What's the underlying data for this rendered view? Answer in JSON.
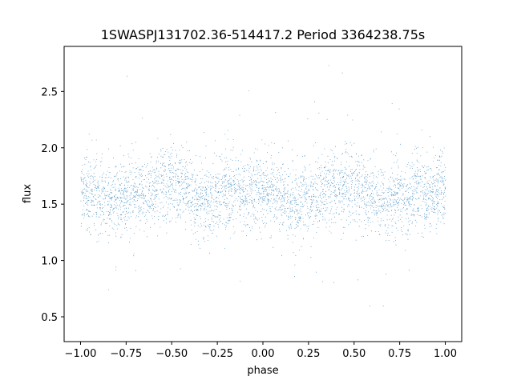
{
  "chart_data": {
    "type": "scatter",
    "title": "1SWASPJ131702.36-514417.2 Period 3364238.75s",
    "xlabel": "phase",
    "ylabel": "flux",
    "xlim": [
      -1.09,
      1.09
    ],
    "ylim": [
      0.28,
      2.9
    ],
    "xticks": [
      -1.0,
      -0.75,
      -0.5,
      -0.25,
      0.0,
      0.25,
      0.5,
      0.75,
      1.0
    ],
    "xtick_labels": [
      "−1.00",
      "−0.75",
      "−0.50",
      "−0.25",
      "0.00",
      "0.25",
      "0.50",
      "0.75",
      "1.00"
    ],
    "yticks": [
      0.5,
      1.0,
      1.5,
      2.0,
      2.5
    ],
    "ytick_labels": [
      "0.5",
      "1.0",
      "1.5",
      "2.0",
      "2.5"
    ],
    "grid": false,
    "legend": "none",
    "point_color": "#1f77b4",
    "phase_range": [
      -1.0,
      1.0
    ],
    "median_flux_by_phase": {
      "x": [
        -1.0,
        -0.95,
        -0.9,
        -0.85,
        -0.8,
        -0.75,
        -0.7,
        -0.65,
        -0.6,
        -0.55,
        -0.5,
        -0.45,
        -0.4,
        -0.35,
        -0.3,
        -0.25,
        -0.2,
        -0.15,
        -0.1,
        -0.05,
        0.0,
        0.05,
        0.1,
        0.15,
        0.2,
        0.25,
        0.3,
        0.35,
        0.4,
        0.45,
        0.5,
        0.55,
        0.6,
        0.65,
        0.7,
        0.75,
        0.8,
        0.85,
        0.9,
        0.95,
        1.0
      ],
      "y": [
        1.62,
        1.6,
        1.57,
        1.5,
        1.52,
        1.58,
        1.6,
        1.6,
        1.65,
        1.7,
        1.68,
        1.64,
        1.6,
        1.52,
        1.5,
        1.58,
        1.62,
        1.62,
        1.55,
        1.62,
        1.65,
        1.6,
        1.56,
        1.5,
        1.5,
        1.55,
        1.6,
        1.62,
        1.62,
        1.68,
        1.68,
        1.63,
        1.58,
        1.5,
        1.52,
        1.56,
        1.6,
        1.6,
        1.56,
        1.6,
        1.62
      ]
    },
    "flux_spread": 0.16,
    "n_points": 26000
  }
}
